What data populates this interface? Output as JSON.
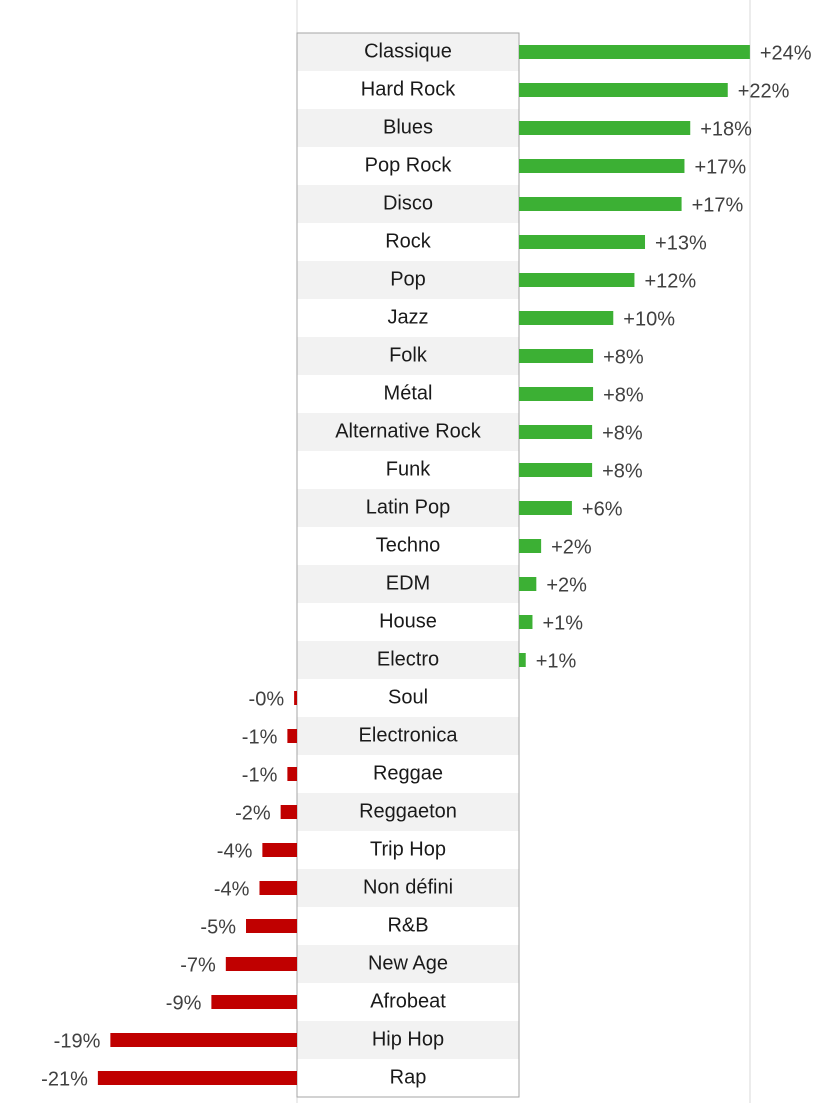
{
  "chart_data": {
    "type": "bar",
    "orientation": "horizontal",
    "categories": [
      "Classique",
      "Hard Rock",
      "Blues",
      "Pop Rock",
      "Disco",
      "Rock",
      "Pop",
      "Jazz",
      "Folk",
      "Métal",
      "Alternative Rock",
      "Funk",
      "Latin Pop",
      "Techno",
      "EDM",
      "House",
      "Electro",
      "Soul",
      "Electronica",
      "Reggae",
      "Reggaeton",
      "Trip Hop",
      "Non défini",
      "R&B",
      "New Age",
      "Afrobeat",
      "Hip Hop",
      "Rap"
    ],
    "values": [
      24,
      21.7,
      17.8,
      17.2,
      16.9,
      13.1,
      12,
      9.8,
      7.7,
      7.7,
      7.6,
      7.6,
      5.5,
      2.3,
      1.8,
      1.4,
      0.7,
      -0.3,
      -1,
      -1,
      -1.7,
      -3.6,
      -3.9,
      -5.3,
      -7.4,
      -8.9,
      -19.4,
      -20.7
    ],
    "value_labels": [
      "+24%",
      "+22%",
      "+18%",
      "+17%",
      "+17%",
      "+13%",
      "+12%",
      "+10%",
      "+8%",
      "+8%",
      "+8%",
      "+8%",
      "+6%",
      "+2%",
      "+2%",
      "+1%",
      "+1%",
      "-0%",
      "-1%",
      "-1%",
      "-2%",
      "-4%",
      "-4%",
      "-5%",
      "-7%",
      "-9%",
      "-19%",
      "-21%"
    ],
    "positive_color": "#3cb034",
    "negative_color": "#c00000"
  }
}
